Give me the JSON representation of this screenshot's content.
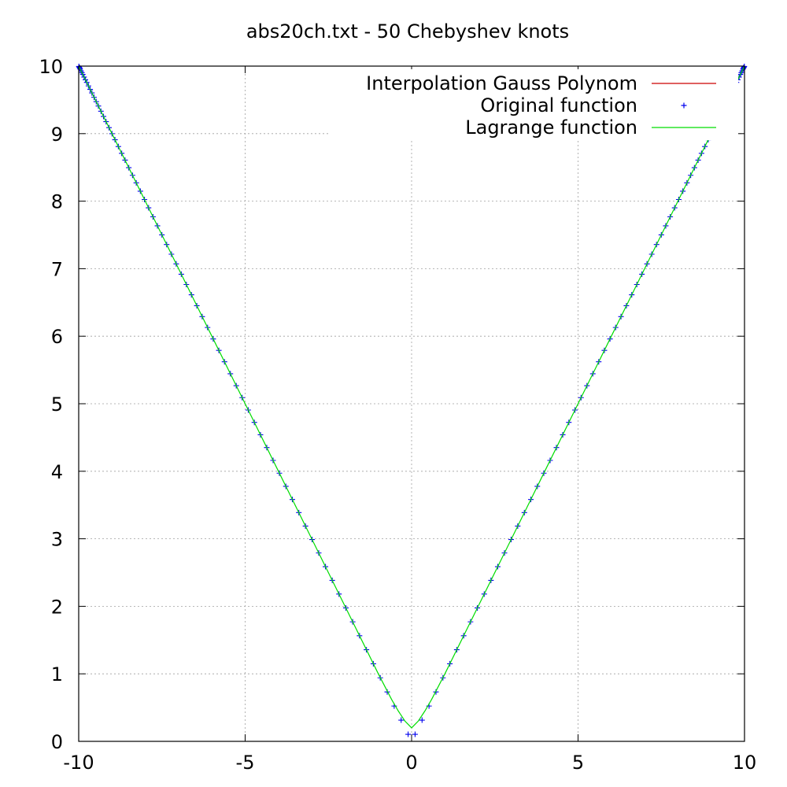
{
  "chart_data": {
    "type": "line",
    "title": "abs20ch.txt - 50 Chebyshev knots",
    "xlabel": "",
    "ylabel": "",
    "xlim": [
      -10,
      10
    ],
    "ylim": [
      0,
      10
    ],
    "xticks": [
      -10,
      -5,
      0,
      5,
      10
    ],
    "yticks": [
      0,
      1,
      2,
      3,
      4,
      5,
      6,
      7,
      8,
      9,
      10
    ],
    "grid": true,
    "legend_position": "top-right",
    "series": [
      {
        "name": "Interpolation Gauss Polynom",
        "style": "line",
        "color": "#cc0000",
        "points": []
      },
      {
        "name": "Original function",
        "style": "points",
        "marker": "plus",
        "color": "#0000ee",
        "function": "abs(x)",
        "knots": 50,
        "knot_type": "chebyshev",
        "samples_per_interval": 3,
        "domain": [
          -10,
          10
        ]
      },
      {
        "name": "Lagrange function",
        "style": "line",
        "color": "#00dd00",
        "points": [
          [
            -10,
            10
          ],
          [
            -9,
            9
          ],
          [
            -8,
            8
          ],
          [
            -7,
            7
          ],
          [
            -6,
            6
          ],
          [
            -5,
            5
          ],
          [
            -4,
            4
          ],
          [
            -3,
            3
          ],
          [
            -2,
            2
          ],
          [
            -1,
            1
          ],
          [
            -0.6,
            0.62
          ],
          [
            -0.4,
            0.45
          ],
          [
            -0.2,
            0.3
          ],
          [
            0,
            0.2
          ],
          [
            0.2,
            0.3
          ],
          [
            0.4,
            0.45
          ],
          [
            0.6,
            0.62
          ],
          [
            1,
            1
          ],
          [
            2,
            2
          ],
          [
            3,
            3
          ],
          [
            4,
            4
          ],
          [
            5,
            5
          ],
          [
            6,
            6
          ],
          [
            7,
            7
          ],
          [
            8,
            8
          ],
          [
            9,
            9
          ],
          [
            10,
            10
          ]
        ]
      }
    ]
  }
}
